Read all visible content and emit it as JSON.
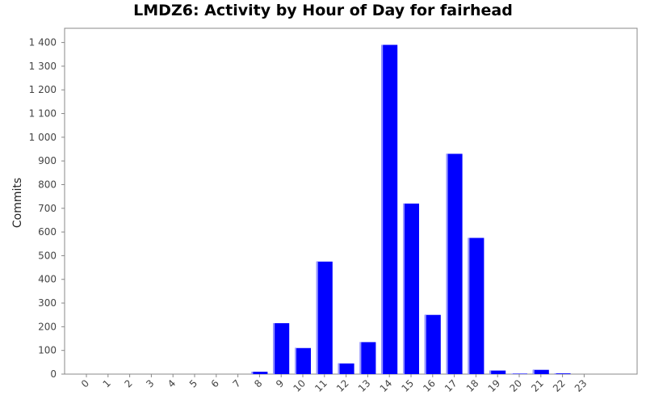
{
  "chart_data": {
    "type": "bar",
    "title": "LMDZ6: Activity by Hour of Day for fairhead",
    "xlabel": "",
    "ylabel": "Commits",
    "categories": [
      "0",
      "1",
      "2",
      "3",
      "4",
      "5",
      "6",
      "7",
      "8",
      "9",
      "10",
      "11",
      "12",
      "13",
      "14",
      "15",
      "16",
      "17",
      "18",
      "19",
      "20",
      "21",
      "22",
      "23"
    ],
    "values": [
      0,
      0,
      0,
      0,
      0,
      0,
      0,
      0,
      10,
      215,
      110,
      475,
      45,
      135,
      1390,
      720,
      250,
      930,
      575,
      15,
      2,
      18,
      3,
      0
    ],
    "ylim": [
      0,
      1460
    ],
    "yticks": [
      0,
      100,
      200,
      300,
      400,
      500,
      600,
      700,
      800,
      900,
      1000,
      1100,
      1200,
      1300,
      1400
    ],
    "ytick_labels": [
      "0",
      "100",
      "200",
      "300",
      "400",
      "500",
      "600",
      "700",
      "800",
      "900",
      "1 000",
      "1 100",
      "1 200",
      "1 300",
      "1 400"
    ],
    "grid": false,
    "legend": "none",
    "colors": {
      "bar": "#0000ff",
      "bar_highlight": "#9999ff",
      "axis": "#888888",
      "background": "#ffffff"
    }
  }
}
